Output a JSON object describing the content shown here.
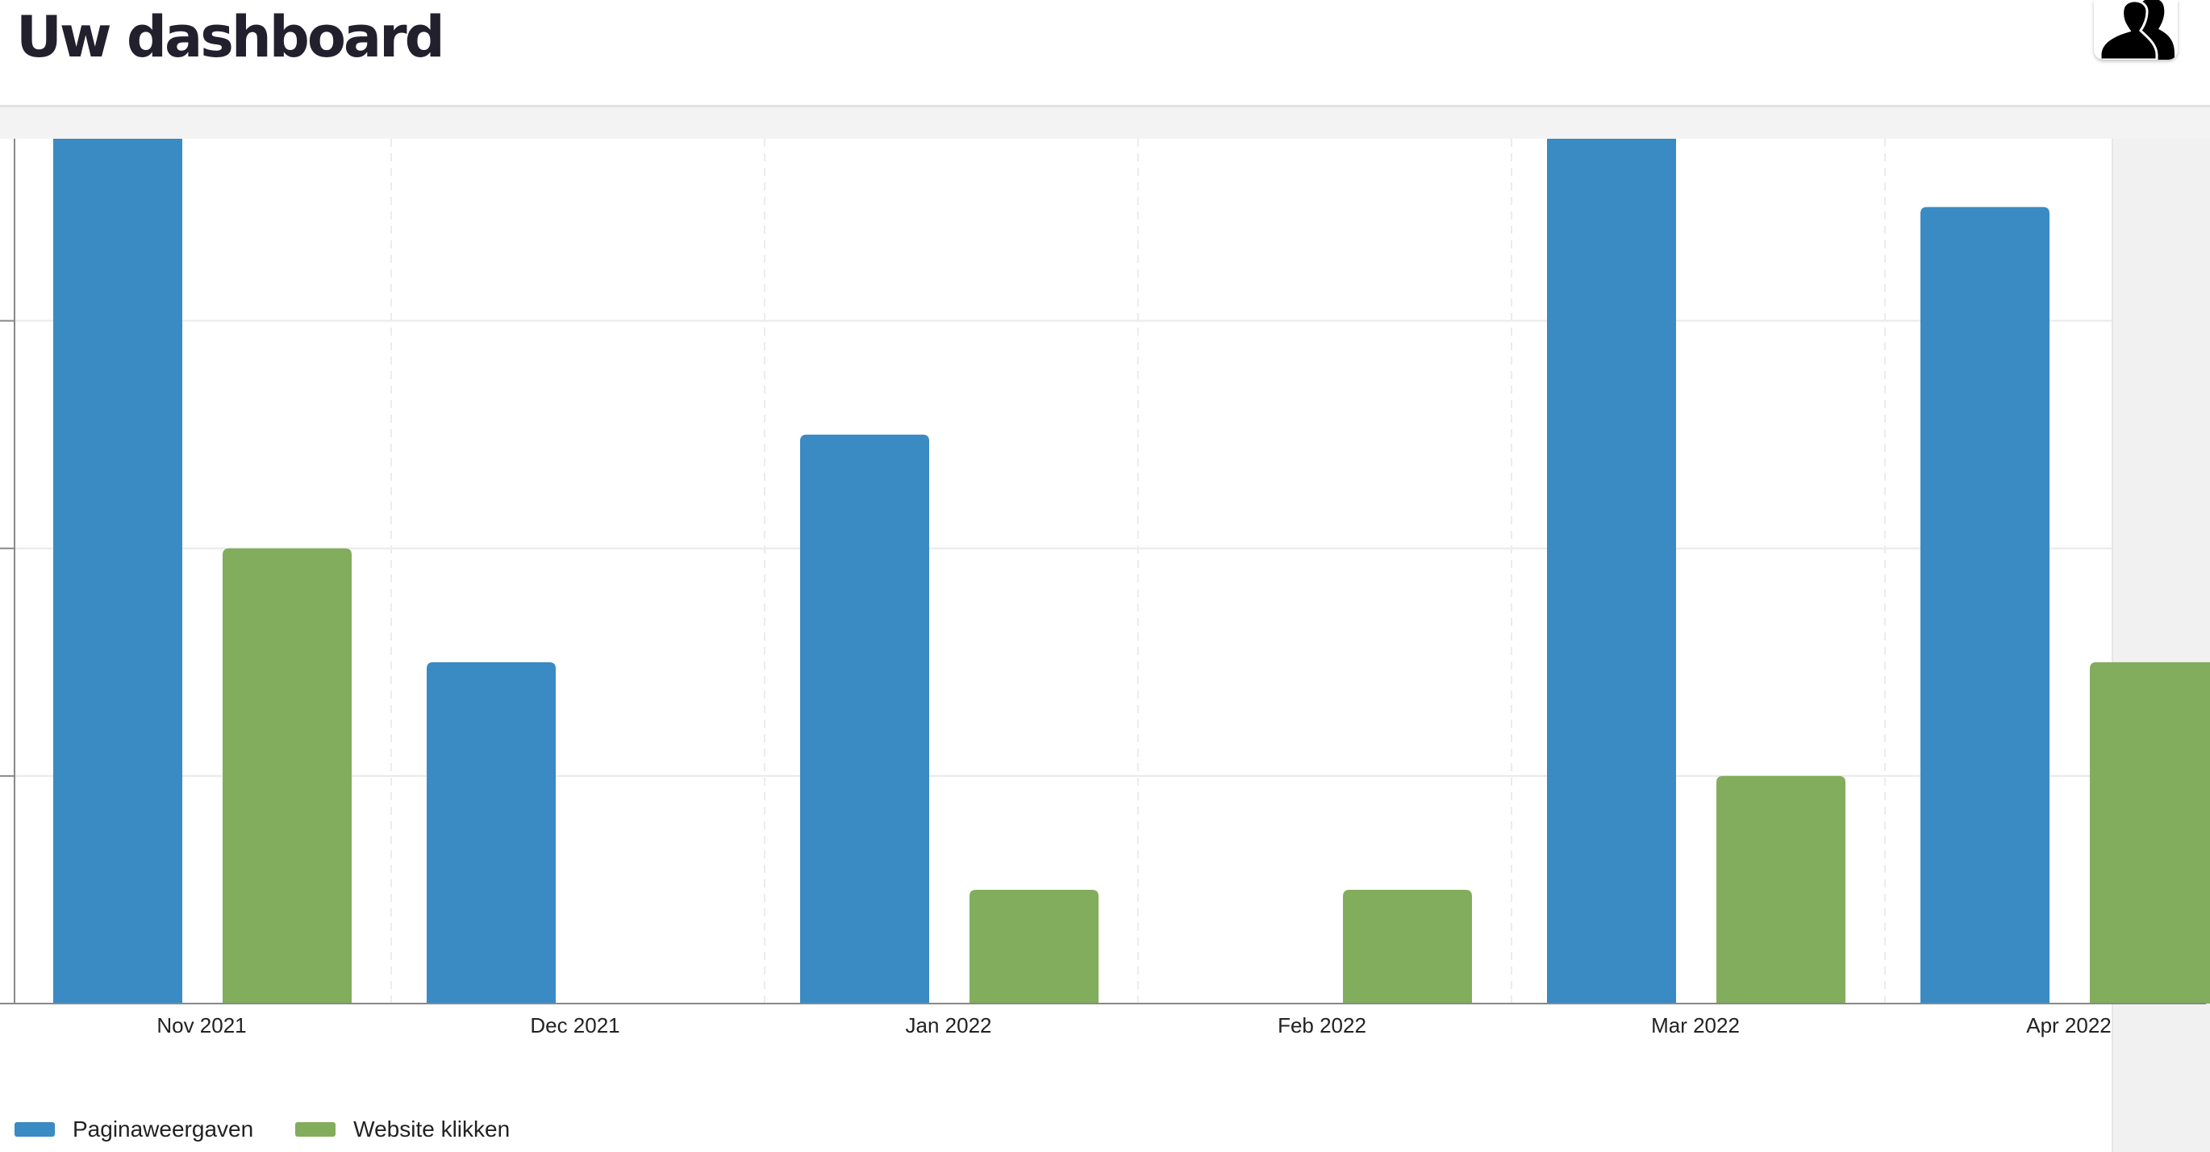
{
  "header": {
    "title": "Uw dashboard",
    "avatar_icon": "user-group-icon"
  },
  "colors": {
    "series_1": "#3a8ac4",
    "series_2": "#82ad5c",
    "grid": "#e9e9e9",
    "axis": "#888888"
  },
  "chart_data": {
    "type": "bar",
    "categories": [
      "Nov 2021",
      "Dec 2021",
      "Jan 2022",
      "Feb 2022",
      "Mar 2022",
      "Apr 2022"
    ],
    "series": [
      {
        "name": "Paginaweergaven",
        "values": [
          8,
          3,
          5,
          0,
          8,
          7
        ]
      },
      {
        "name": "Website klikken",
        "values": [
          4,
          0,
          1,
          1,
          2,
          3
        ]
      }
    ],
    "ylim": [
      0,
      7.6
    ],
    "yticks": [
      0,
      2,
      4,
      6
    ],
    "xlabel": "",
    "ylabel": "",
    "grid": true,
    "legend_position": "bottom-left"
  },
  "legend": {
    "items": [
      {
        "label": "Paginaweergaven",
        "color": "#3a8ac4"
      },
      {
        "label": "Website klikken",
        "color": "#82ad5c"
      }
    ]
  }
}
